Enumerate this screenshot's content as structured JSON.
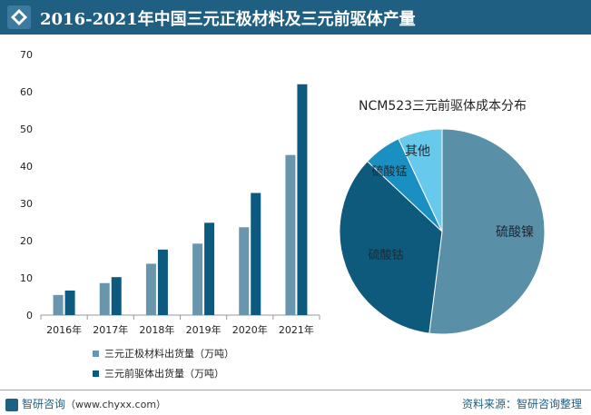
{
  "header": {
    "title": "2016-2021年中国三元正极材料及三元前驱体产量",
    "icon": "diamond-icon"
  },
  "chart_data": [
    {
      "type": "bar",
      "categories": [
        "2016年",
        "2017年",
        "2018年",
        "2019年",
        "2020年",
        "2021年"
      ],
      "series": [
        {
          "name": "三元正极材料出货量（万吨）",
          "values": [
            5.4,
            8.6,
            13.8,
            19.2,
            23.6,
            43.0
          ],
          "color": "#6a96ad"
        },
        {
          "name": "三元前驱体出货量（万吨）",
          "values": [
            6.6,
            10.2,
            17.6,
            24.8,
            32.8,
            62.0
          ],
          "color": "#0d5a80"
        }
      ],
      "yticks": [
        0,
        10,
        20,
        30,
        40,
        50,
        60,
        70
      ],
      "ylim": [
        0,
        70
      ]
    },
    {
      "type": "pie",
      "title": "NCM523三元前驱体成本分布",
      "slices": [
        {
          "label": "硫酸镍",
          "value": 52,
          "color": "#5a8fa8"
        },
        {
          "label": "硫酸钴",
          "value": 35,
          "color": "#0e5a7c"
        },
        {
          "label": "硫酸锰",
          "value": 6,
          "color": "#1a90c2"
        },
        {
          "label": "其他",
          "value": 7,
          "color": "#67c9ec"
        }
      ]
    }
  ],
  "footer": {
    "logo_text": "智研咨询",
    "url": "（www.chyxx.com）",
    "source": "资料来源：智研咨询整理"
  }
}
